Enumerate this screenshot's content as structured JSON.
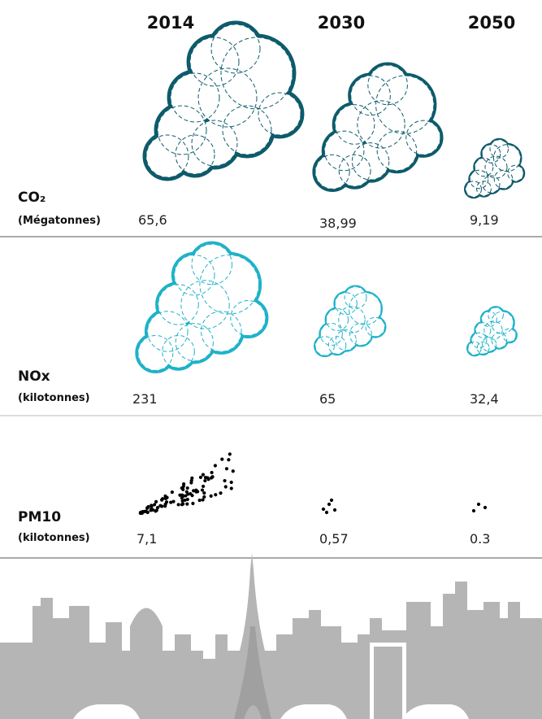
{
  "years": [
    "2014",
    "2030",
    "2050"
  ],
  "rows": [
    {
      "label": "CO₂",
      "unit": "(Mégatonnes)",
      "values": [
        "65,6",
        "38,99",
        "9,19"
      ]
    },
    {
      "label": "NOx",
      "unit": "(kilotonnes)",
      "values": [
        "231",
        "65",
        "32,4"
      ]
    },
    {
      "label": "PM10",
      "unit": "(kilotonnes)",
      "values": [
        "7,1",
        "0,57",
        "0.3"
      ]
    }
  ]
}
